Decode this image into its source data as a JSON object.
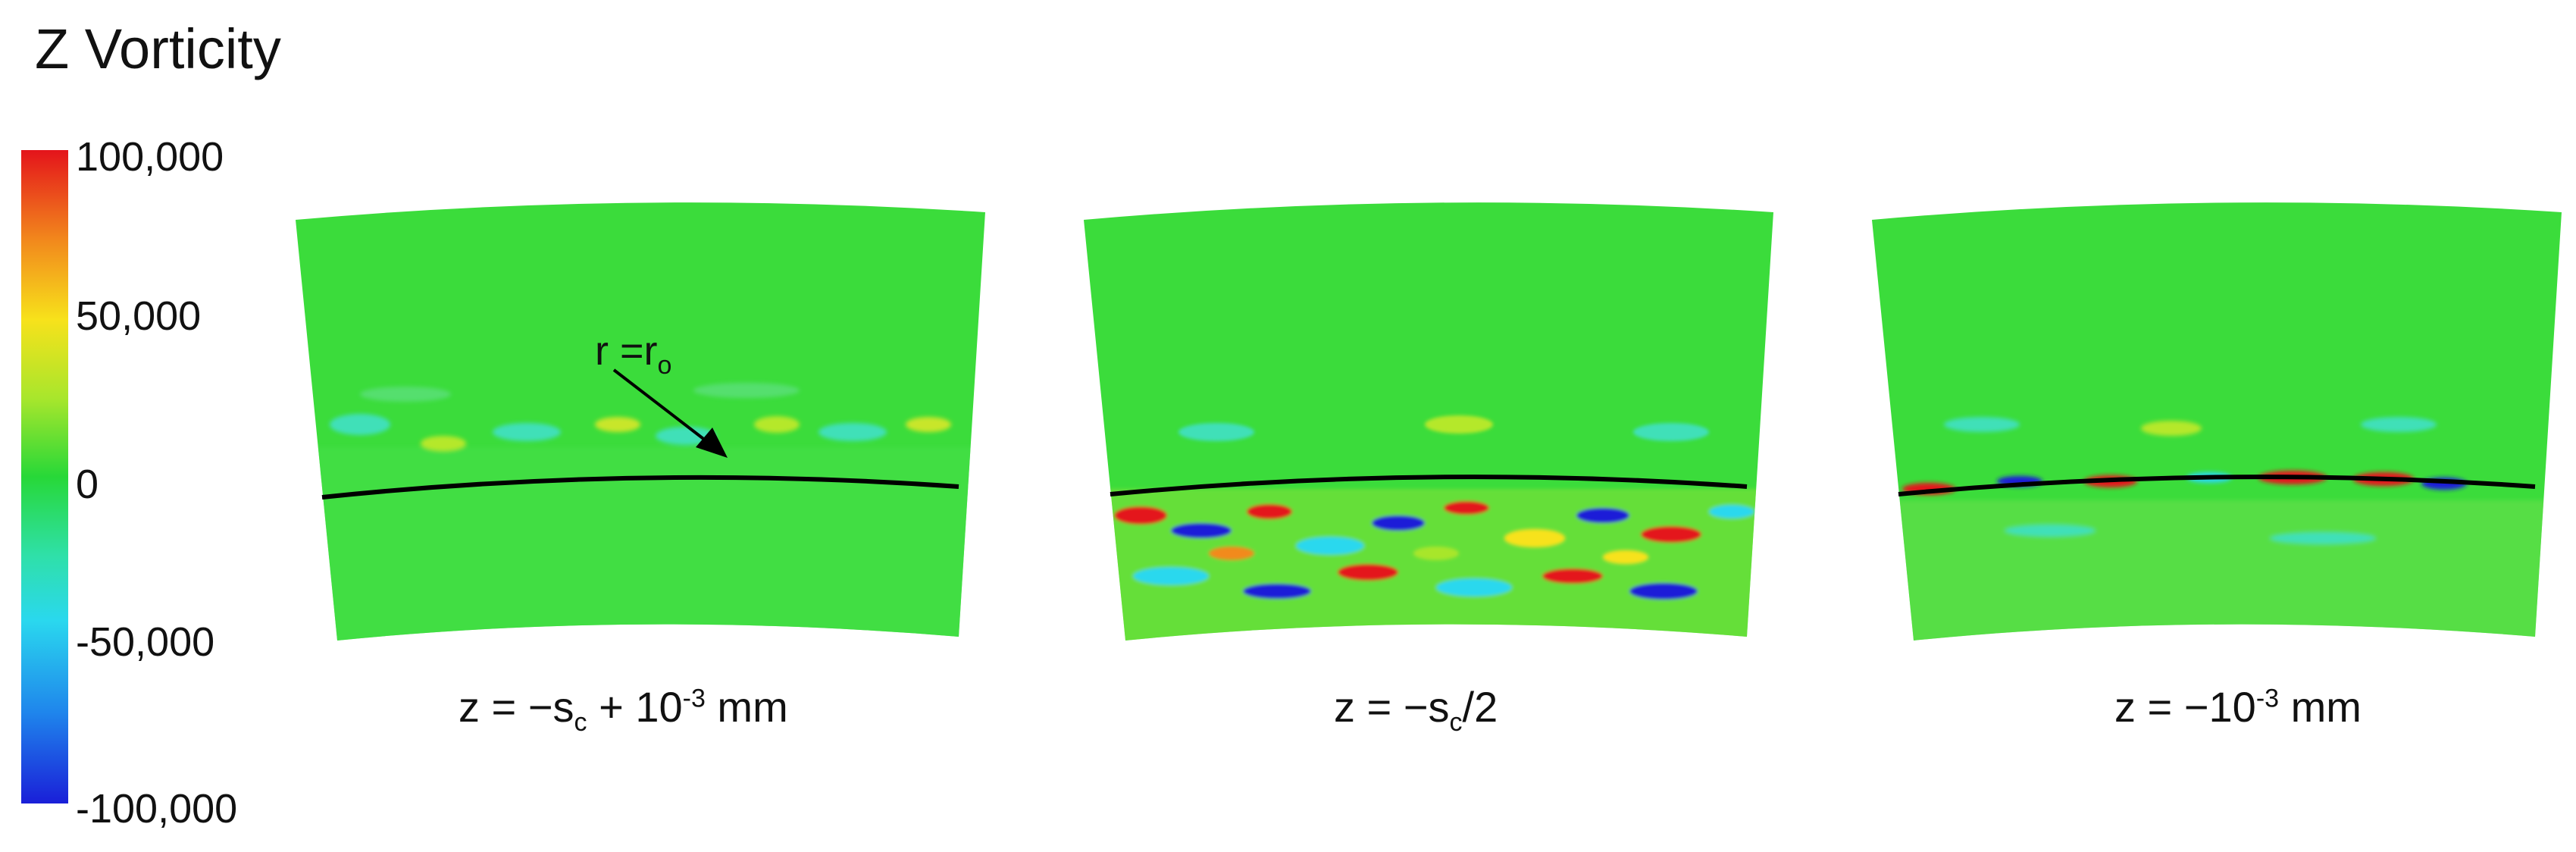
{
  "title": "Z Vorticity",
  "colorbar": {
    "ticks": [
      "100,000",
      "50,000",
      "0",
      "-50,000",
      "-100,000"
    ],
    "range": [
      -100000,
      100000
    ],
    "colors": [
      "#e4141b",
      "#f28a1c",
      "#f7e21b",
      "#a8e62c",
      "#27d838",
      "#2fe0a8",
      "#2ad8ee",
      "#1f86ec",
      "#1a1fd8"
    ]
  },
  "annotation": {
    "prefix": "r =r",
    "sub": "o"
  },
  "panels": [
    {
      "caption": {
        "a": "z = −s",
        "sub": "c",
        "b": " + 10",
        "sup": "-3",
        "c": " mm"
      }
    },
    {
      "caption": {
        "a": "z = −s",
        "sub": "c",
        "b": "/2"
      }
    },
    {
      "caption": {
        "a": "z = −10",
        "sup": "-3",
        "b": " mm"
      }
    }
  ]
}
